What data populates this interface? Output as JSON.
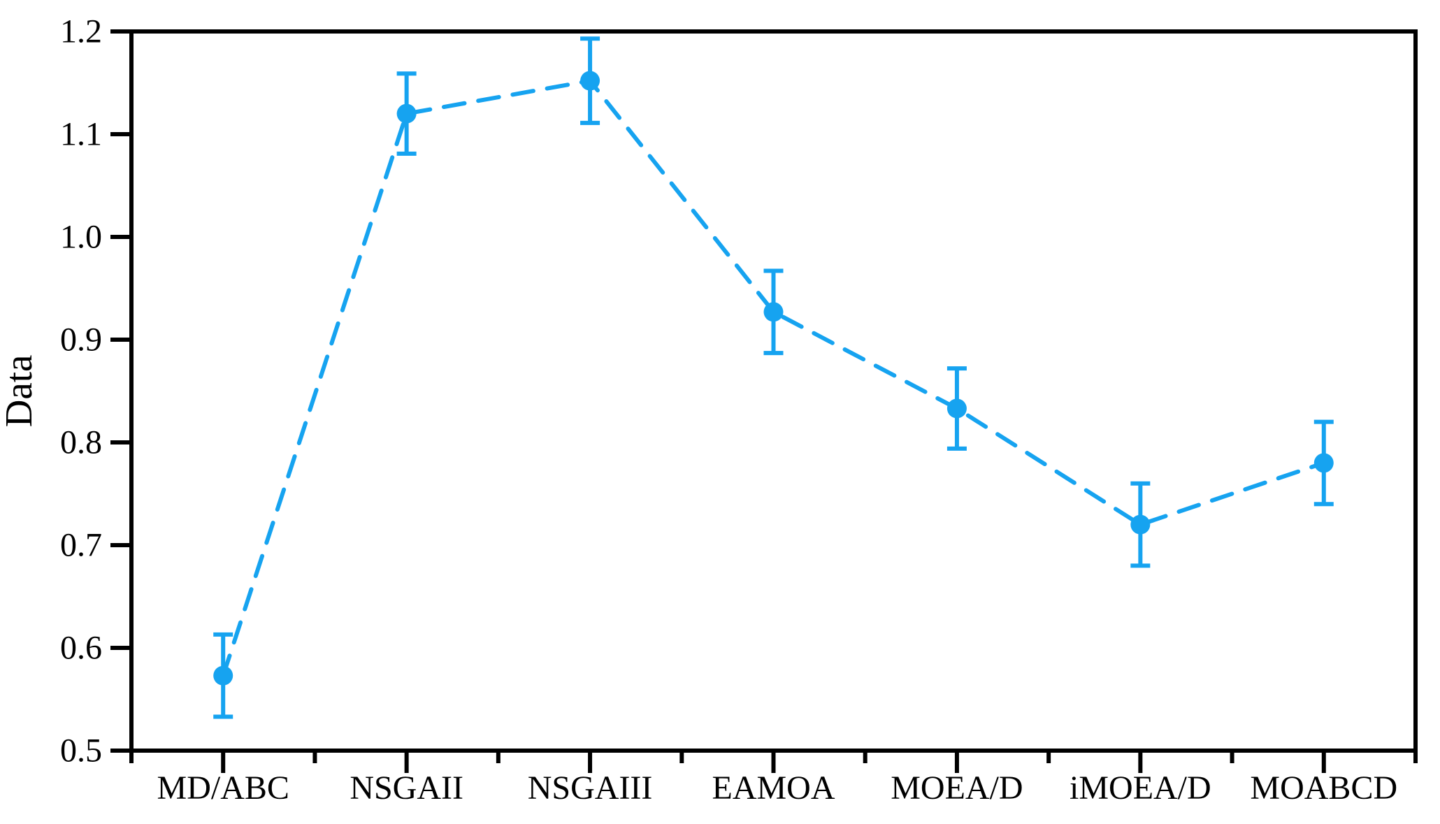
{
  "figure": {
    "background": "#ffffff",
    "title": ""
  },
  "chart_data": {
    "type": "line",
    "subtype": "errorbar-dashed-line-with-markers",
    "categories": [
      "MD/ABC",
      "NSGAII",
      "NSGAIII",
      "EAMOA",
      "MOEA/D",
      "iMOEA/D",
      "MOABCD"
    ],
    "series": [
      {
        "name": "Data",
        "values": [
          0.573,
          1.12,
          1.152,
          0.927,
          0.833,
          0.72,
          0.78
        ],
        "errors": [
          0.04,
          0.039,
          0.041,
          0.04,
          0.039,
          0.04,
          0.04
        ]
      }
    ],
    "title": "",
    "xlabel": "",
    "ylabel": "Data",
    "ylim": [
      0.5,
      1.2
    ],
    "ytick_values": [
      0.5,
      0.6,
      0.7,
      0.8,
      0.9,
      1.0,
      1.1,
      1.2
    ],
    "ytick_labels": [
      "0.5",
      "0.6",
      "0.7",
      "0.8",
      "0.9",
      "1.0",
      "1.1",
      "1.2"
    ],
    "grid": false,
    "legend_position": "none",
    "line_style": "dashed",
    "marker": "circle",
    "series_color": "#16A3F0",
    "axis_color": "#000000",
    "frame": "full-box"
  }
}
